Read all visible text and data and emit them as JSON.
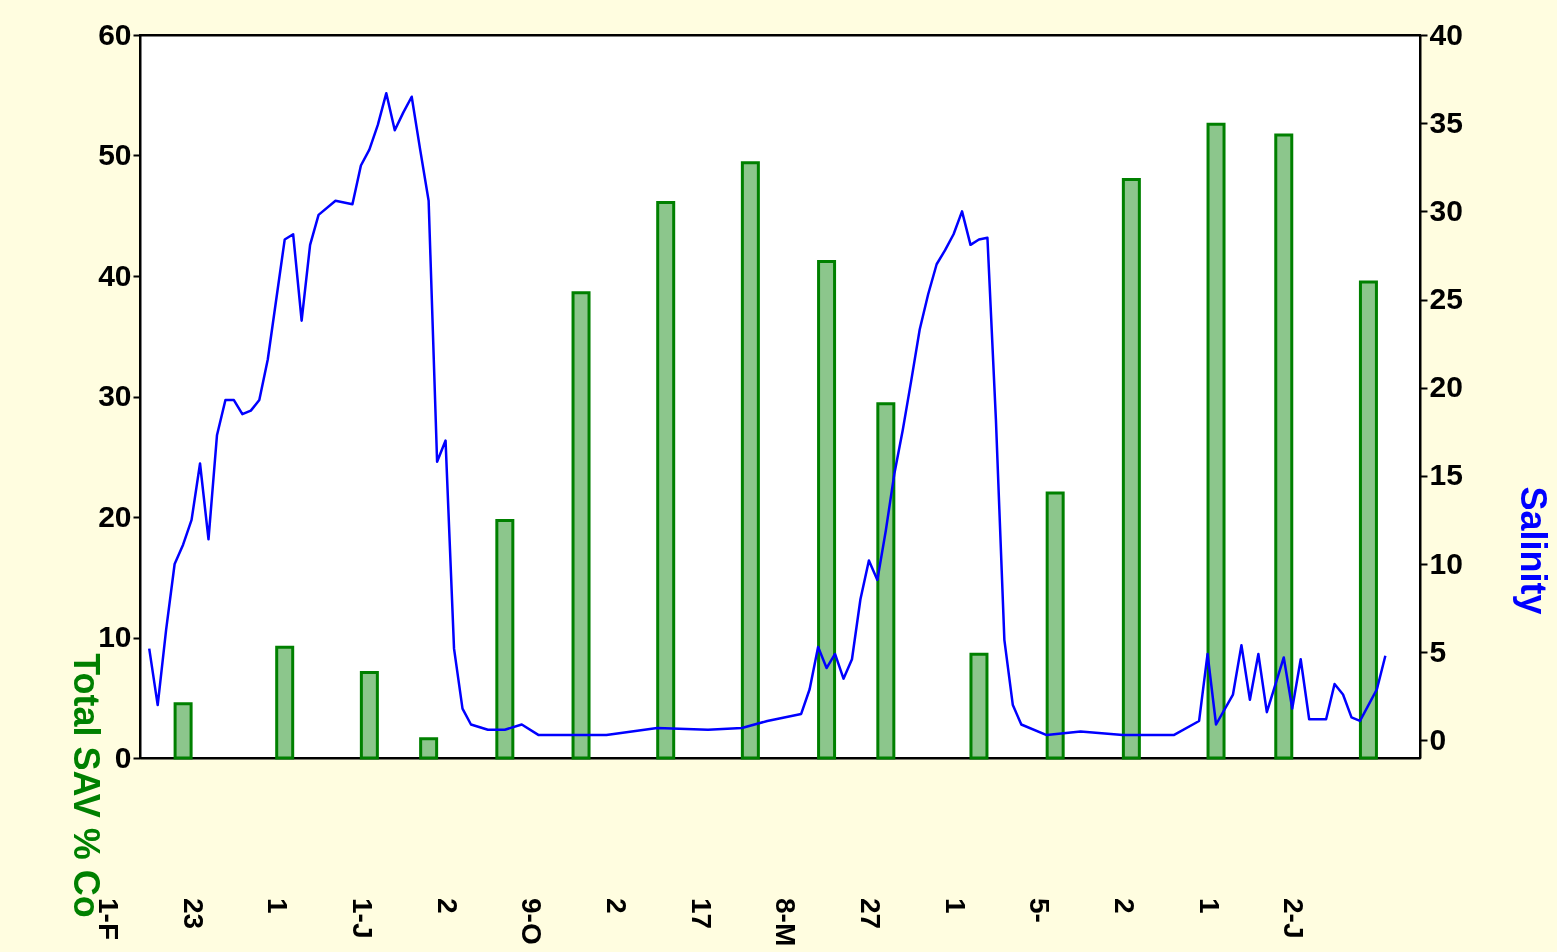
{
  "chart_data": {
    "type": "bar",
    "ylabel": "Total SAV % Co",
    "y2label": "Salinity",
    "categories": [
      "1-F",
      null,
      null,
      null,
      null,
      null,
      null,
      null,
      null,
      null,
      "23",
      null,
      null,
      null,
      null,
      null,
      null,
      null,
      null,
      null,
      "1",
      null,
      null,
      null,
      null,
      null,
      null,
      null,
      null,
      null,
      "1-J",
      null,
      null,
      null,
      null,
      null,
      null,
      null,
      null,
      null,
      "2",
      null,
      null,
      null,
      null,
      null,
      null,
      null,
      null,
      null,
      "9-O",
      null,
      null,
      null,
      null,
      null,
      null,
      null,
      null,
      null,
      "2",
      null,
      null,
      null,
      null,
      null,
      null,
      null,
      null,
      null,
      "17",
      null,
      null,
      null,
      null,
      null,
      null,
      null,
      null,
      null,
      "8-M",
      null,
      null,
      null,
      null,
      null,
      null,
      null,
      null,
      null,
      "27",
      null,
      null,
      null,
      null,
      null,
      null,
      null,
      null,
      null,
      "1",
      null,
      null,
      null,
      null,
      null,
      null,
      null,
      null,
      null,
      "5-",
      null,
      null,
      null,
      null,
      null,
      null,
      null,
      null,
      null,
      "2",
      null,
      null,
      null,
      null,
      null,
      null,
      null,
      null,
      null,
      "1",
      null,
      null,
      null,
      null,
      null,
      null,
      null,
      null,
      null,
      "2-J",
      null,
      null,
      null,
      null,
      null,
      null,
      null,
      null,
      null,
      null,
      null,
      null,
      null,
      null
    ],
    "ylim": [
      0,
      60
    ],
    "yticks": [
      0,
      10,
      20,
      30,
      40,
      50,
      60
    ],
    "y2lim": [
      -1,
      40
    ],
    "y2ticks": [
      0,
      5,
      10,
      15,
      20,
      25,
      30,
      35,
      40
    ],
    "grid": false,
    "series": [
      {
        "color": "#008000",
        "values": [
          null,
          null,
          null,
          null,
          null,
          null,
          null,
          null,
          null,
          4.5,
          null,
          null,
          null,
          null,
          null,
          null,
          null,
          null,
          null,
          null,
          null,
          9.2,
          null,
          null,
          null,
          null,
          null,
          null,
          null,
          null,
          null,
          7.1,
          null,
          null,
          null,
          null,
          null,
          null,
          1.6,
          null,
          null,
          null,
          null,
          null,
          null,
          null,
          null,
          19.7,
          null,
          null,
          null,
          null,
          null,
          null,
          null,
          null,
          38.6,
          null,
          null,
          null,
          null,
          null,
          null,
          null,
          null,
          null,
          46.1,
          null,
          null,
          null,
          null,
          null,
          null,
          null,
          null,
          null,
          49.4,
          null,
          null,
          null,
          null,
          null,
          null,
          null,
          null,
          41.2,
          null,
          null,
          null,
          null,
          null,
          null,
          29.4,
          null,
          null,
          null,
          null,
          null,
          null,
          null,
          null,
          null,
          null,
          8.6,
          null,
          null,
          null,
          null,
          null,
          null,
          null,
          null,
          22.0,
          null,
          null,
          null,
          null,
          null,
          null,
          null,
          null,
          48.0,
          null,
          null,
          null,
          null,
          null,
          null,
          null,
          null,
          null,
          52.6,
          null,
          null,
          null,
          null,
          null,
          null,
          null,
          51.7,
          null,
          null,
          null,
          null,
          null,
          null,
          null,
          null,
          null,
          39.5,
          null,
          null,
          null,
          null,
          null
        ]
      },
      {
        "type": "line",
        "axis": "y2",
        "color": "#0000ff",
        "values": [
          null,
          null,
          null,
          null,
          null,
          5.2,
          2.0,
          6.3,
          10.0,
          11.1,
          12.5,
          15.7,
          11.4,
          17.3,
          19.3,
          19.3,
          18.5,
          18.7,
          19.3,
          21.6,
          25.0,
          28.4,
          28.7,
          23.8,
          28.1,
          29.8,
          null,
          30.6,
          null,
          30.4,
          32.6,
          33.5,
          34.9,
          36.7,
          34.6,
          35.6,
          36.5,
          33.5,
          30.6,
          15.8,
          17.0,
          5.2,
          1.8,
          0.9,
          null,
          0.6,
          null,
          0.6,
          null,
          0.9,
          null,
          0.3,
          null,
          null,
          null,
          null,
          null,
          null,
          null,
          0.3,
          null,
          null,
          null,
          null,
          null,
          0.7,
          null,
          null,
          null,
          null,
          null,
          0.6,
          null,
          null,
          null,
          0.7,
          null,
          null,
          1.1,
          null,
          1.3,
          null,
          1.5,
          2.9,
          5.3,
          4.1,
          4.9,
          3.5,
          4.6,
          8.0,
          10.2,
          9.1,
          11.9,
          15.1,
          17.6,
          20.4,
          23.3,
          25.3,
          27.0,
          27.8,
          28.7,
          30.0,
          28.1,
          28.4,
          28.5,
          18.2,
          5.7,
          2.0,
          0.9,
          null,
          null,
          0.3,
          null,
          null,
          null,
          0.5,
          null,
          null,
          null,
          null,
          0.3,
          null,
          null,
          null,
          null,
          null,
          0.3,
          null,
          null,
          1.1,
          4.9,
          0.9,
          null,
          2.6,
          5.4,
          2.3,
          4.9,
          1.6,
          null,
          4.7,
          1.8,
          4.6,
          1.2,
          null,
          1.2,
          3.2,
          2.6,
          1.3,
          1.1,
          2.0,
          2.9,
          4.8,
          null,
          null,
          null
        ]
      }
    ]
  }
}
